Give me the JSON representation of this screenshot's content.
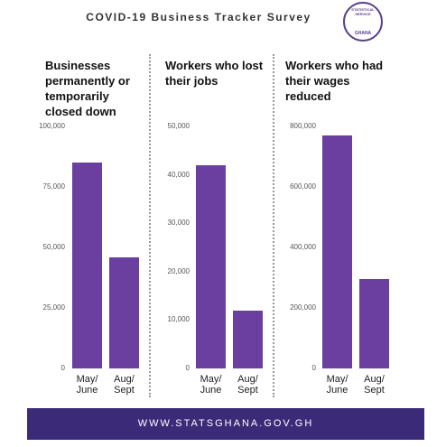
{
  "title": "COVID-19 Business Tracker Survey",
  "logo": {
    "top": "STATISTICAL SERVICE",
    "bottom": "GHANA"
  },
  "footer": "WWW.STATSGHANA.GOV.GH",
  "chart_data": [
    {
      "type": "bar",
      "title": "Businesses permanently or temporarily closed down",
      "categories": [
        "May/ June",
        "Aug/ Sept"
      ],
      "values": [
        85000,
        46000
      ],
      "color": "#6b3fa0",
      "ylim": [
        0,
        100000
      ],
      "yticks": [
        0,
        {
          "value": 25000,
          "label": "25,000"
        },
        {
          "value": 50000,
          "label": "50,000"
        },
        {
          "value": 75000,
          "label": "75,000"
        },
        {
          "value": 100000,
          "label": "100,000"
        }
      ]
    },
    {
      "type": "bar",
      "title": "Workers who lost their jobs",
      "categories": [
        "May/ June",
        "Aug/ Sept"
      ],
      "values": [
        42000,
        12000
      ],
      "color": "#6b3fa0",
      "ylim": [
        0,
        50000
      ],
      "yticks": [
        0,
        {
          "value": 10000,
          "label": "10,000"
        },
        {
          "value": 20000,
          "label": "20,000"
        },
        {
          "value": 30000,
          "label": "30,000"
        },
        {
          "value": 40000,
          "label": "40,000"
        },
        {
          "value": 50000,
          "label": "50,000"
        }
      ]
    },
    {
      "type": "bar",
      "title": "Workers who had their wages reduced",
      "categories": [
        "May/ June",
        "Aug/ Sept"
      ],
      "values": [
        770000,
        295000
      ],
      "color": "#6b3fa0",
      "ylim": [
        0,
        800000
      ],
      "yticks": [
        0,
        {
          "value": 200000,
          "label": "200,000"
        },
        {
          "value": 400000,
          "label": "400,000"
        },
        {
          "value": 600000,
          "label": "600,000"
        },
        {
          "value": 800000,
          "label": "800,000"
        }
      ]
    }
  ]
}
